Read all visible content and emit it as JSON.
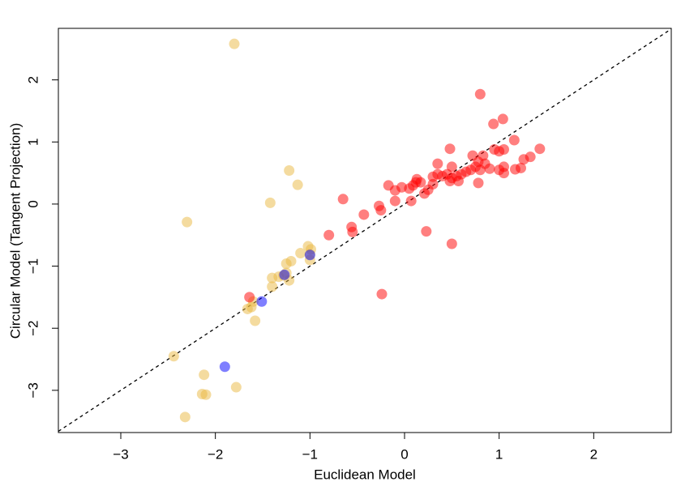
{
  "chart_data": {
    "type": "scatter",
    "x_label": "Euclidean Model",
    "y_label": "Circular Model (Tangent Projection)",
    "xlim": [
      -3.66,
      2.82
    ],
    "ylim": [
      -3.68,
      2.83
    ],
    "xticks": [
      {
        "value": -3,
        "label": "−3"
      },
      {
        "value": -2,
        "label": "−2"
      },
      {
        "value": -1,
        "label": "−1"
      },
      0,
      1,
      2
    ],
    "yticks": [
      {
        "value": -3,
        "label": "−3"
      },
      {
        "value": -2,
        "label": "−2"
      },
      {
        "value": -1,
        "label": "−1"
      },
      0,
      1,
      2
    ],
    "grid": false,
    "series": [
      {
        "color": "#e9b840",
        "x": [
          -1.8,
          -2.3,
          -1.22,
          -1.13,
          -1.42,
          -2.44,
          -2.32,
          -2.12,
          -2.14,
          -2.1,
          -1.78,
          -1.58,
          -1.66,
          -1.62,
          -1.6,
          -1.4,
          -1.4,
          -1.33,
          -1.25,
          -1.22,
          -1.2,
          -1.25,
          -1.1,
          -1.02,
          -0.99,
          -1.0,
          -1.28,
          -1.0
        ],
        "y": [
          2.58,
          -0.29,
          0.54,
          0.31,
          0.02,
          -2.45,
          -3.43,
          -2.75,
          -3.06,
          -3.07,
          -2.95,
          -1.88,
          -1.69,
          -1.66,
          -1.57,
          -1.33,
          -1.19,
          -1.17,
          -1.11,
          -1.23,
          -0.92,
          -0.96,
          -0.79,
          -0.68,
          -0.73,
          -0.9,
          -1.15,
          -0.81
        ]
      },
      {
        "color": "#ff0000",
        "x": [
          0.8,
          1.04,
          0.94,
          0.48,
          1.16,
          1.43,
          1.33,
          1.26,
          1.05,
          1.0,
          0.95,
          0.83,
          0.72,
          0.78,
          0.85,
          0.75,
          0.8,
          0.9,
          1.05,
          1.05,
          1.17,
          1.23,
          1.0,
          0.7,
          0.65,
          0.6,
          0.55,
          0.5,
          0.45,
          0.4,
          0.35,
          0.3,
          0.5,
          0.35,
          0.57,
          0.78,
          0.48,
          0.3,
          0.25,
          0.21,
          0.17,
          0.13,
          0.09,
          0.05,
          -0.03,
          -0.17,
          -0.1,
          -0.1,
          0.07,
          0.12,
          -0.27,
          -0.25,
          -0.43,
          -0.56,
          -0.55,
          -0.8,
          -0.65,
          0.23,
          0.5,
          -0.24,
          -1.64
        ],
        "y": [
          1.77,
          1.37,
          1.29,
          0.89,
          1.03,
          0.89,
          0.76,
          0.72,
          0.88,
          0.85,
          0.88,
          0.78,
          0.78,
          0.68,
          0.65,
          0.6,
          0.55,
          0.57,
          0.6,
          0.5,
          0.56,
          0.58,
          0.55,
          0.55,
          0.52,
          0.48,
          0.45,
          0.42,
          0.48,
          0.45,
          0.48,
          0.44,
          0.6,
          0.65,
          0.37,
          0.34,
          0.37,
          0.32,
          0.23,
          0.17,
          0.35,
          0.4,
          0.3,
          0.25,
          0.27,
          0.3,
          0.22,
          0.05,
          0.05,
          0.35,
          -0.03,
          -0.1,
          -0.17,
          -0.37,
          -0.45,
          -0.5,
          0.08,
          -0.44,
          -0.64,
          -1.45,
          -1.5
        ]
      },
      {
        "color": "#0000ff",
        "x": [
          -1.9,
          -1.51,
          -1.27,
          -1.0
        ],
        "y": [
          -2.62,
          -1.57,
          -1.14,
          -0.82
        ]
      }
    ]
  }
}
